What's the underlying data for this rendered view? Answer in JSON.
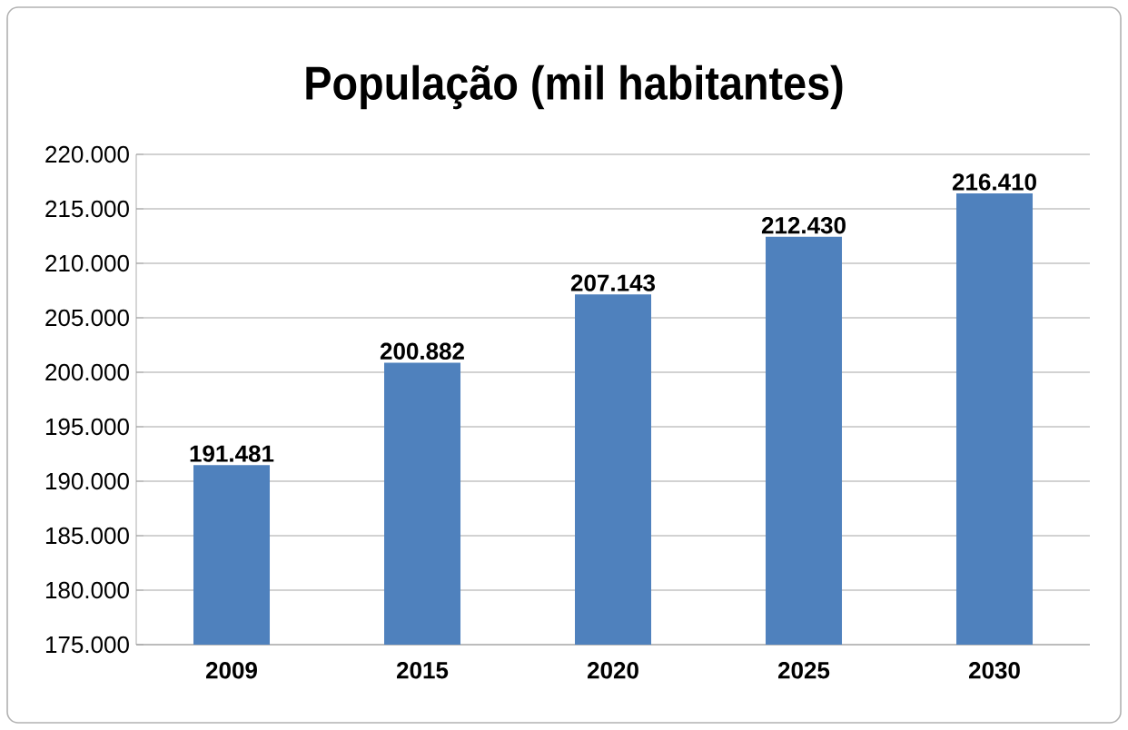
{
  "chart_data": {
    "type": "bar",
    "title": "População (mil habitantes)",
    "categories": [
      "2009",
      "2015",
      "2020",
      "2025",
      "2030"
    ],
    "values": [
      191481,
      200882,
      207143,
      212430,
      216410
    ],
    "value_labels": [
      "191.481",
      "200.882",
      "207.143",
      "212.430",
      "216.410"
    ],
    "color": "#4f81bd",
    "ylim": [
      175000,
      220000
    ],
    "yticks": [
      {
        "value": 175000,
        "label": "175.000"
      },
      {
        "value": 180000,
        "label": "180.000"
      },
      {
        "value": 185000,
        "label": "185.000"
      },
      {
        "value": 190000,
        "label": "190.000"
      },
      {
        "value": 195000,
        "label": "195.000"
      },
      {
        "value": 200000,
        "label": "200.000"
      },
      {
        "value": 205000,
        "label": "205.000"
      },
      {
        "value": 210000,
        "label": "210.000"
      },
      {
        "value": 215000,
        "label": "215.000"
      },
      {
        "value": 220000,
        "label": "220.000"
      }
    ],
    "grid": "y"
  }
}
